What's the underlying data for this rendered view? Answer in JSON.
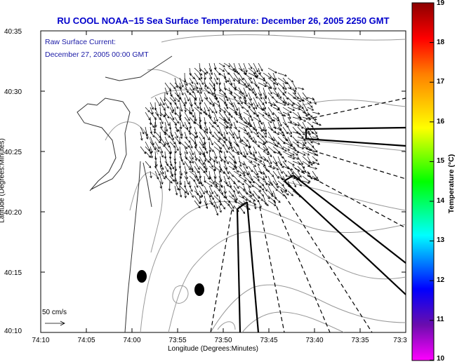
{
  "title": "RU COOL  NOAA−15  Sea Surface Temperature:  December 26, 2005 2250 GMT",
  "current": {
    "label": "Raw Surface Current:",
    "time": "December 27, 2005 00:00 GMT"
  },
  "axes": {
    "ylabel": "Latitude (Degrees:Minutes)",
    "xlabel": "Longitude (Degrees:Minutes)",
    "yticks": [
      "40:35",
      "40:30",
      "40:25",
      "40:20",
      "40:15",
      "40:10"
    ],
    "xticks": [
      "74:10",
      "74:05",
      "74:00",
      "73:55",
      "73:50",
      "73:45",
      "73:40",
      "73:35",
      "73:3"
    ]
  },
  "scale_label": "50 cm/s",
  "colorbar": {
    "label": "Temperature (°C)",
    "ticks": [
      "19",
      "18",
      "17",
      "16",
      "15",
      "14",
      "13",
      "12",
      "11",
      "10"
    ],
    "colors": [
      "#8b0000",
      "#ff0000",
      "#ff8000",
      "#ffff00",
      "#00ff00",
      "#00ffff",
      "#0000ff",
      "#6a0dad",
      "#ff00ff"
    ]
  },
  "map": {
    "land_color": "#ffffff",
    "contour_color": "#999999",
    "vector_color": "#000000"
  }
}
